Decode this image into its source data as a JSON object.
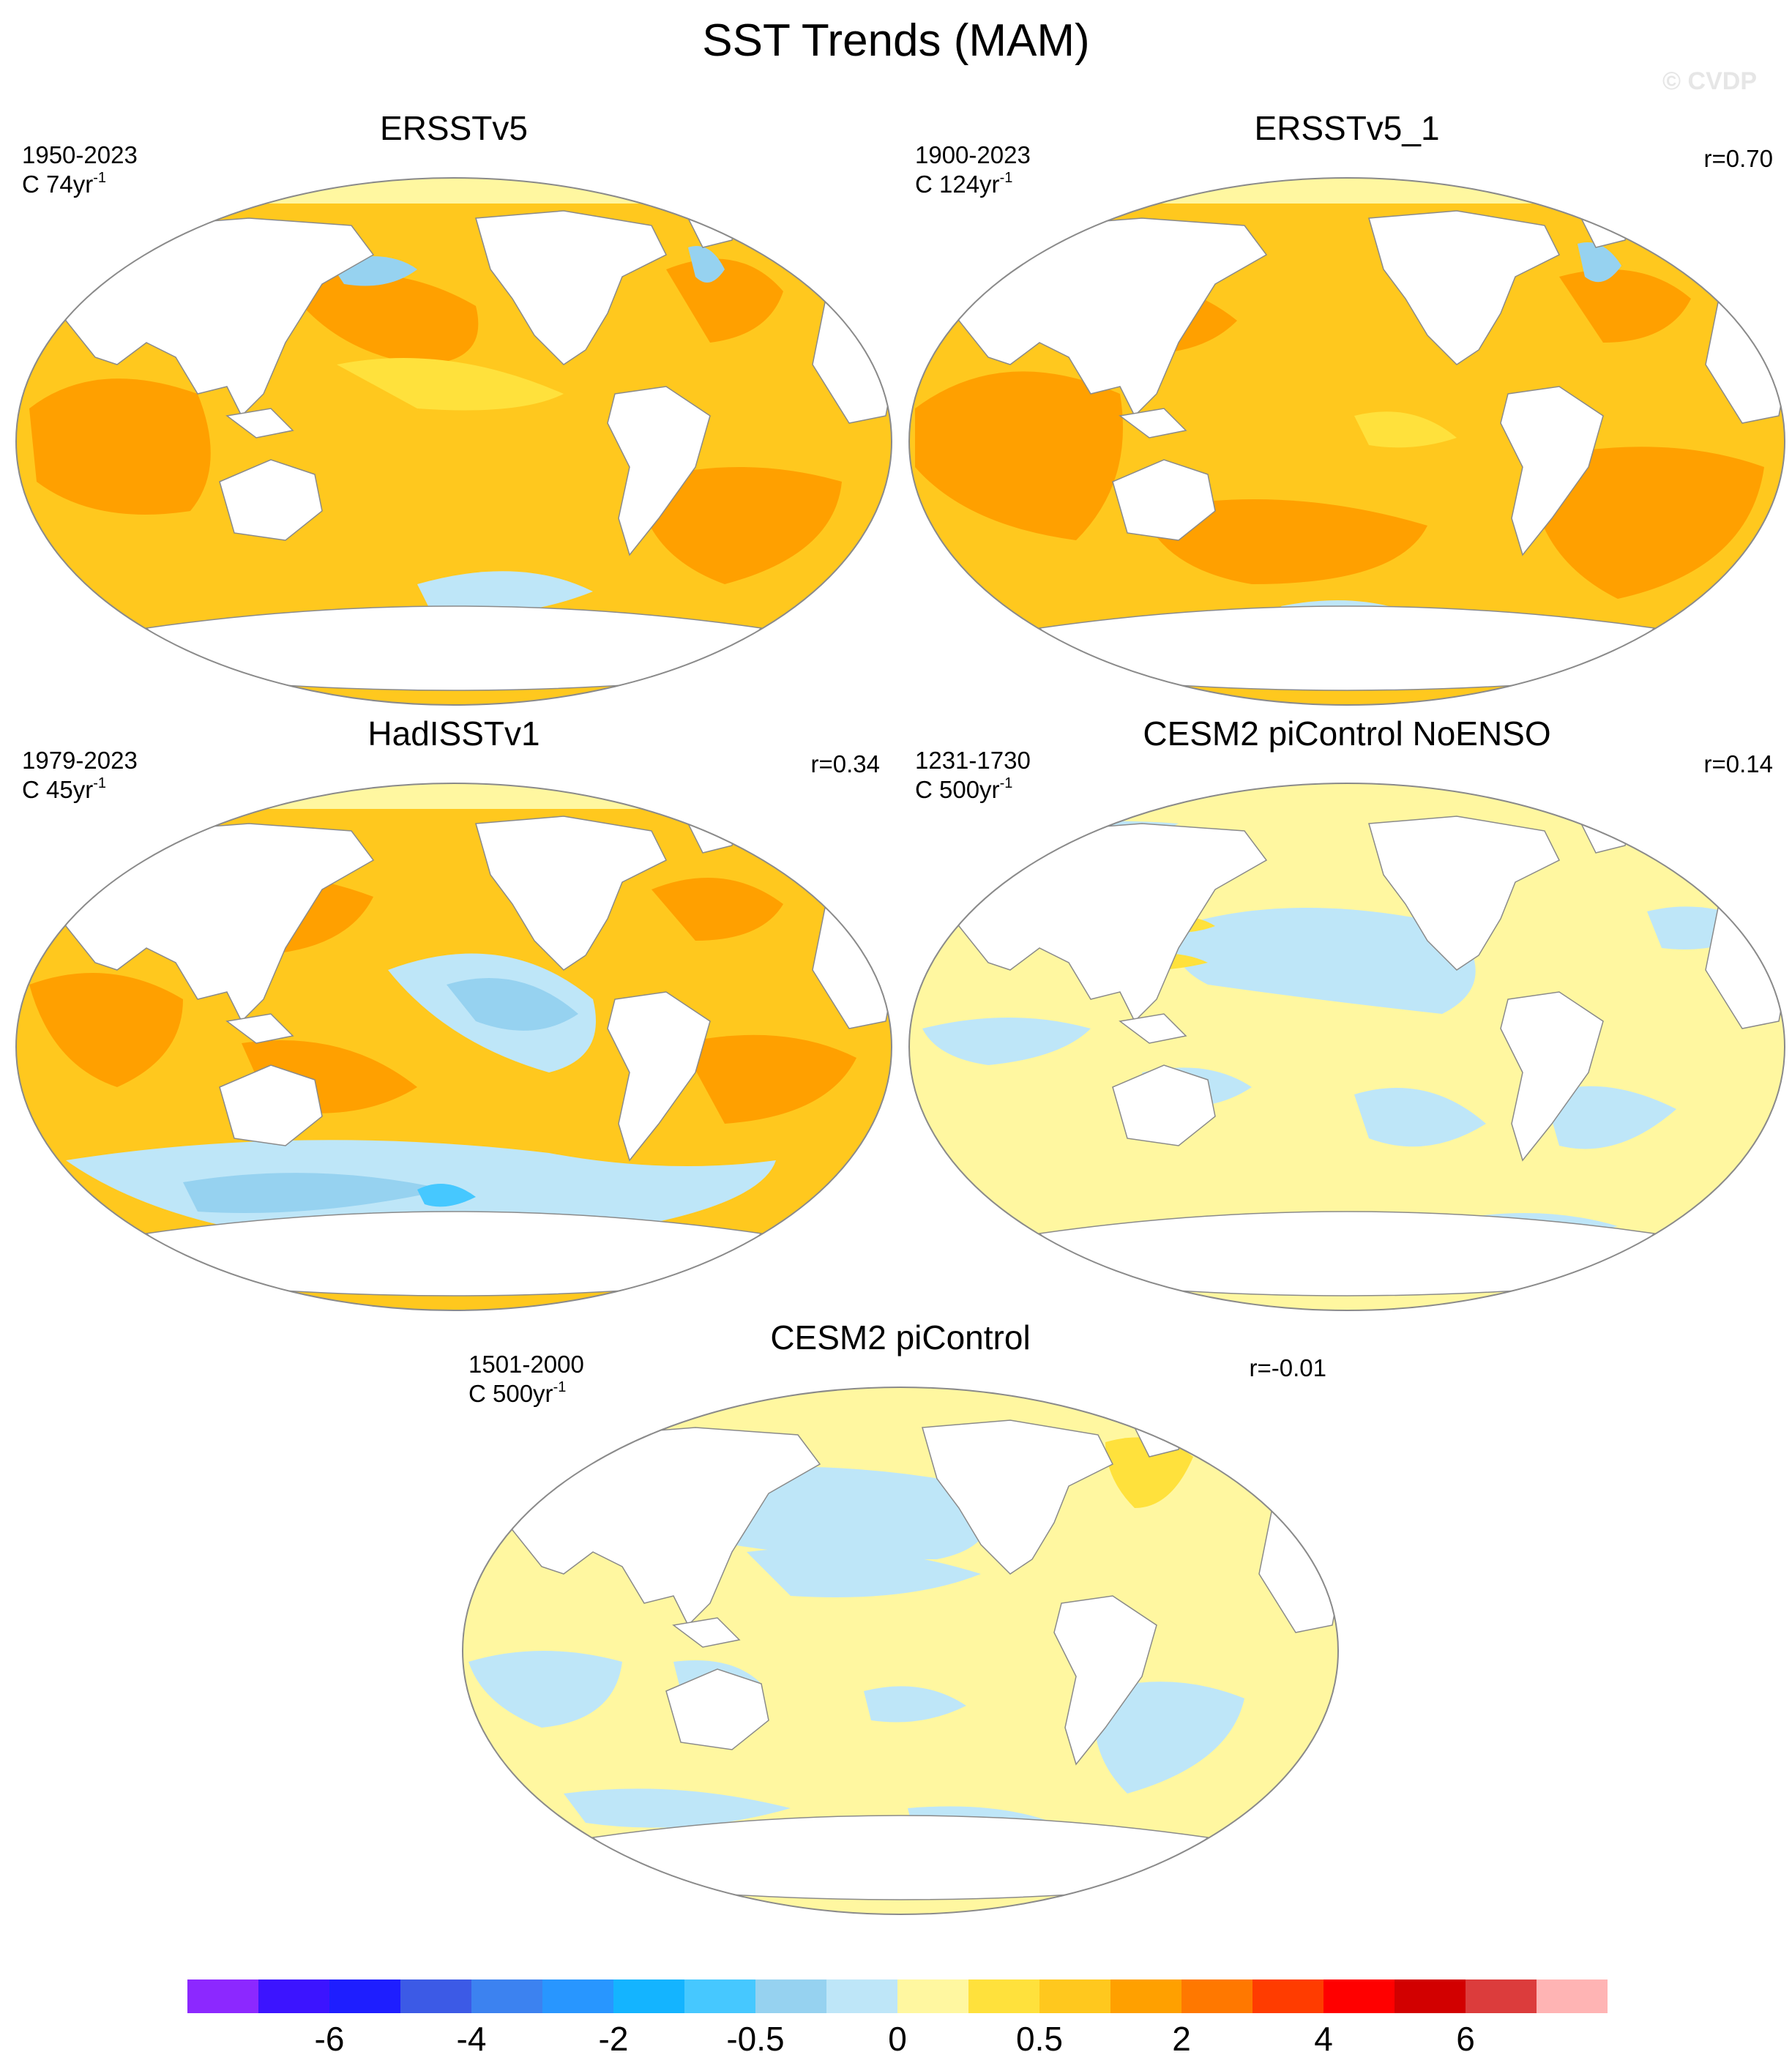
{
  "title": "SST Trends (MAM)",
  "watermark": "© CVDP",
  "colors": {
    "ocean_neutral": "#fff7a0",
    "land": "#ffffff",
    "outline": "#8a8a8a"
  },
  "panels": [
    {
      "title": "ERSSTv5",
      "period": "1950-2023",
      "trend_label": "C 74yr",
      "trend_exp": "-1",
      "r": "",
      "dominant": "warm"
    },
    {
      "title": "ERSSTv5_1",
      "period": "1900-2023",
      "trend_label": "C 124yr",
      "trend_exp": "-1",
      "r": "r=0.70",
      "dominant": "warm"
    },
    {
      "title": "HadISSTv1",
      "period": "1979-2023",
      "trend_label": "C 45yr",
      "trend_exp": "-1",
      "r": "r=0.34",
      "dominant": "mixed"
    },
    {
      "title": "CESM2 piControl NoENSO",
      "period": "1231-1730",
      "trend_label": "C 500yr",
      "trend_exp": "-1",
      "r": "r=0.14",
      "dominant": "neutral"
    },
    {
      "title": "CESM2 piControl",
      "period": "1501-2000",
      "trend_label": "C 500yr",
      "trend_exp": "-1",
      "r": "r=-0.01",
      "dominant": "neutral"
    }
  ],
  "colorbar": {
    "colors": [
      "#8c28ff",
      "#3c14ff",
      "#1e1eff",
      "#3c5ae6",
      "#3c82f0",
      "#2896ff",
      "#14b4ff",
      "#46c8ff",
      "#96d2f0",
      "#bee6f8",
      "#fff7a0",
      "#ffe13c",
      "#ffc81e",
      "#ffa000",
      "#ff7800",
      "#ff3c00",
      "#ff0000",
      "#d20000",
      "#dc3c3c",
      "#ffb4b4"
    ],
    "labels": [
      "-6",
      "-4",
      "-2",
      "-0.5",
      "0",
      "0.5",
      "2",
      "4",
      "6"
    ],
    "label_boundaries": [
      2,
      4,
      6,
      8,
      10,
      12,
      14,
      16,
      18
    ]
  }
}
